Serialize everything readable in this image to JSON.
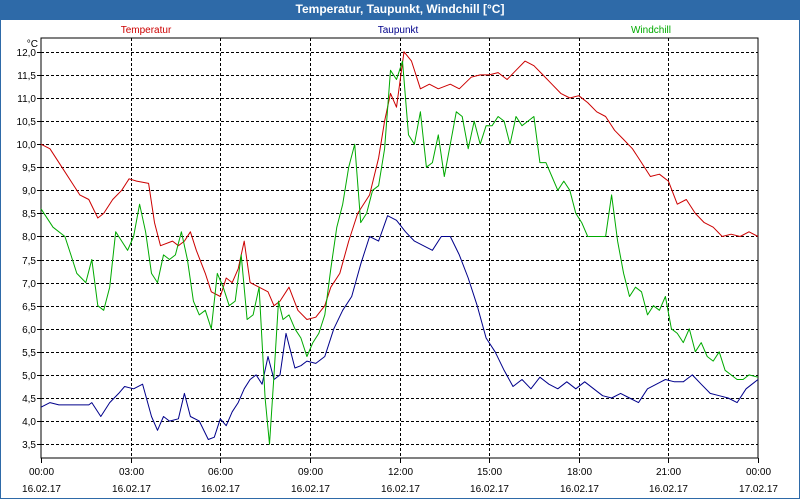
{
  "window": {
    "title": "Temperatur, Taupunkt, Windchill [°C]"
  },
  "chart_data": {
    "type": "line",
    "title": "Temperatur, Taupunkt, Windchill [°C]",
    "ylabel": "°C",
    "ylim": [
      3.2,
      12.3
    ],
    "yticks": [
      3.5,
      4.0,
      4.5,
      5.0,
      5.5,
      6.0,
      6.5,
      7.0,
      7.5,
      8.0,
      8.5,
      9.0,
      9.5,
      10.0,
      10.5,
      11.0,
      11.5,
      12.0
    ],
    "ytick_labels": [
      "3,5",
      "4,0",
      "4,5",
      "5,0",
      "5,5",
      "6,0",
      "6,5",
      "7,0",
      "7,5",
      "8,0",
      "8,5",
      "9,0",
      "9,5",
      "10,0",
      "10,5",
      "11,0",
      "11,5",
      "12,0"
    ],
    "xlim": [
      0,
      24
    ],
    "xticks": [
      0,
      3,
      6,
      9,
      12,
      15,
      18,
      21,
      24
    ],
    "xtick_time_labels": [
      "00:00",
      "03:00",
      "06:00",
      "09:00",
      "12:00",
      "15:00",
      "18:00",
      "21:00",
      "00:00"
    ],
    "xtick_date_labels": [
      "16.02.17",
      "16.02.17",
      "16.02.17",
      "16.02.17",
      "16.02.17",
      "16.02.17",
      "16.02.17",
      "16.02.17",
      "17.02.17"
    ],
    "grid": true,
    "legend_position": "top",
    "series": [
      {
        "name": "Temperatur",
        "color": "#cc0000",
        "x": [
          0,
          0.3,
          0.7,
          1.0,
          1.3,
          1.6,
          1.9,
          2.1,
          2.4,
          2.7,
          2.95,
          3.2,
          3.6,
          3.8,
          4.0,
          4.4,
          4.6,
          4.8,
          5.0,
          5.2,
          5.5,
          5.7,
          6.0,
          6.2,
          6.4,
          6.6,
          6.8,
          7.0,
          7.3,
          7.6,
          7.8,
          8.0,
          8.3,
          8.6,
          8.9,
          9.2,
          9.5,
          9.7,
          10.0,
          10.3,
          10.6,
          11.0,
          11.3,
          11.5,
          11.7,
          11.9,
          12.15,
          12.4,
          12.7,
          13.0,
          13.3,
          13.7,
          14.0,
          14.4,
          14.7,
          15.0,
          15.3,
          15.6,
          15.9,
          16.2,
          16.5,
          16.8,
          17.1,
          17.4,
          17.7,
          18.0,
          18.3,
          18.6,
          18.9,
          19.2,
          19.5,
          19.8,
          20.1,
          20.4,
          20.7,
          21.0,
          21.3,
          21.6,
          21.9,
          22.2,
          22.5,
          22.8,
          23.1,
          23.4,
          23.7,
          24.0
        ],
        "values": [
          10.0,
          9.9,
          9.5,
          9.2,
          8.9,
          8.8,
          8.4,
          8.5,
          8.8,
          9.0,
          9.25,
          9.2,
          9.15,
          8.3,
          7.8,
          7.9,
          7.8,
          7.9,
          8.1,
          7.7,
          7.2,
          6.8,
          6.7,
          7.1,
          7.0,
          7.3,
          7.9,
          7.0,
          6.9,
          6.8,
          6.5,
          6.6,
          6.9,
          6.4,
          6.2,
          6.25,
          6.5,
          6.9,
          7.2,
          7.9,
          8.5,
          8.9,
          9.7,
          10.5,
          11.1,
          10.8,
          12.0,
          11.8,
          11.2,
          11.3,
          11.2,
          11.3,
          11.2,
          11.45,
          11.5,
          11.5,
          11.55,
          11.4,
          11.6,
          11.8,
          11.7,
          11.5,
          11.3,
          11.1,
          11.0,
          11.05,
          10.9,
          10.7,
          10.6,
          10.3,
          10.1,
          9.9,
          9.6,
          9.3,
          9.35,
          9.2,
          8.7,
          8.8,
          8.5,
          8.3,
          8.2,
          8.0,
          8.05,
          8.0,
          8.1,
          8.0
        ]
      },
      {
        "name": "Taupunkt",
        "color": "#00008b",
        "x": [
          0,
          0.3,
          0.6,
          1.0,
          1.3,
          1.6,
          1.7,
          2.0,
          2.3,
          2.6,
          2.8,
          3.1,
          3.4,
          3.7,
          3.9,
          4.1,
          4.3,
          4.6,
          4.8,
          5.0,
          5.3,
          5.6,
          5.8,
          6.0,
          6.2,
          6.4,
          6.6,
          6.8,
          7.0,
          7.2,
          7.4,
          7.6,
          7.8,
          8.0,
          8.2,
          8.5,
          8.7,
          8.9,
          9.2,
          9.5,
          9.8,
          10.1,
          10.4,
          10.7,
          11.0,
          11.3,
          11.6,
          11.9,
          12.2,
          12.5,
          12.8,
          13.1,
          13.4,
          13.7,
          14.0,
          14.3,
          14.6,
          14.9,
          15.2,
          15.5,
          15.8,
          16.1,
          16.4,
          16.7,
          17.0,
          17.3,
          17.6,
          17.9,
          18.2,
          18.5,
          18.8,
          19.1,
          19.4,
          19.7,
          20.0,
          20.3,
          20.6,
          20.9,
          21.2,
          21.5,
          21.8,
          22.1,
          22.4,
          22.7,
          23.0,
          23.3,
          23.6,
          23.8,
          24.0
        ],
        "values": [
          4.3,
          4.4,
          4.35,
          4.35,
          4.35,
          4.35,
          4.4,
          4.1,
          4.4,
          4.6,
          4.75,
          4.7,
          4.8,
          4.1,
          3.8,
          4.1,
          4.0,
          4.05,
          4.6,
          4.1,
          4.0,
          3.6,
          3.65,
          4.05,
          3.9,
          4.2,
          4.4,
          4.7,
          4.9,
          5.0,
          4.8,
          5.4,
          4.9,
          5.0,
          5.9,
          5.15,
          5.2,
          5.3,
          5.25,
          5.4,
          6.0,
          6.4,
          6.7,
          7.4,
          8.0,
          7.9,
          8.45,
          8.35,
          8.1,
          7.9,
          7.8,
          7.7,
          8.0,
          8.0,
          7.6,
          7.1,
          6.5,
          5.8,
          5.5,
          5.1,
          4.75,
          4.9,
          4.7,
          4.95,
          4.8,
          4.7,
          4.85,
          4.7,
          4.85,
          4.7,
          4.55,
          4.5,
          4.6,
          4.5,
          4.4,
          4.7,
          4.8,
          4.9,
          4.85,
          4.85,
          5.0,
          4.8,
          4.6,
          4.55,
          4.5,
          4.4,
          4.7,
          4.8,
          4.9
        ]
      },
      {
        "name": "Windchill",
        "color": "#00aa00",
        "x": [
          0,
          0.4,
          0.8,
          1.0,
          1.2,
          1.5,
          1.7,
          1.9,
          2.1,
          2.3,
          2.5,
          2.7,
          2.9,
          3.1,
          3.3,
          3.5,
          3.7,
          3.9,
          4.1,
          4.3,
          4.5,
          4.7,
          4.9,
          5.1,
          5.3,
          5.5,
          5.7,
          5.9,
          6.1,
          6.3,
          6.5,
          6.7,
          6.9,
          7.1,
          7.3,
          7.5,
          7.65,
          7.8,
          7.95,
          8.1,
          8.3,
          8.5,
          8.7,
          8.9,
          9.1,
          9.3,
          9.5,
          9.7,
          9.9,
          10.1,
          10.3,
          10.5,
          10.7,
          10.9,
          11.1,
          11.3,
          11.5,
          11.7,
          11.9,
          12.1,
          12.3,
          12.5,
          12.7,
          12.9,
          13.1,
          13.3,
          13.5,
          13.7,
          13.9,
          14.1,
          14.3,
          14.5,
          14.7,
          14.9,
          15.1,
          15.3,
          15.5,
          15.7,
          15.9,
          16.1,
          16.3,
          16.5,
          16.7,
          16.9,
          17.1,
          17.3,
          17.5,
          17.7,
          17.9,
          18.1,
          18.3,
          18.5,
          18.7,
          18.9,
          19.1,
          19.3,
          19.5,
          19.7,
          19.9,
          20.1,
          20.3,
          20.5,
          20.7,
          20.9,
          21.1,
          21.3,
          21.5,
          21.7,
          21.9,
          22.1,
          22.3,
          22.5,
          22.7,
          22.9,
          23.1,
          23.3,
          23.5,
          23.7,
          24.0
        ],
        "values": [
          8.6,
          8.2,
          8.0,
          7.6,
          7.2,
          7.0,
          7.5,
          6.5,
          6.4,
          6.9,
          8.1,
          7.9,
          7.7,
          8.0,
          8.7,
          8.1,
          7.2,
          7.0,
          7.6,
          7.5,
          7.6,
          8.1,
          7.5,
          6.6,
          6.3,
          6.4,
          6.0,
          7.2,
          6.9,
          6.5,
          6.6,
          7.6,
          6.2,
          6.3,
          6.9,
          4.5,
          3.5,
          5.0,
          6.6,
          6.2,
          6.3,
          6.0,
          5.8,
          5.4,
          5.7,
          5.9,
          6.3,
          7.3,
          8.2,
          8.7,
          9.5,
          10.0,
          8.3,
          8.5,
          9.0,
          9.1,
          9.9,
          11.6,
          11.4,
          11.8,
          10.2,
          10.0,
          10.7,
          9.5,
          9.6,
          10.2,
          9.3,
          10.0,
          10.7,
          10.6,
          9.9,
          10.5,
          10.0,
          10.4,
          10.4,
          10.6,
          10.5,
          10.0,
          10.6,
          10.4,
          10.5,
          10.6,
          9.6,
          9.6,
          9.3,
          9.0,
          9.2,
          9.0,
          8.5,
          8.3,
          8.0,
          8.0,
          8.0,
          8.0,
          8.9,
          7.9,
          7.2,
          6.7,
          6.9,
          6.8,
          6.3,
          6.5,
          6.4,
          6.7,
          6.0,
          5.9,
          5.7,
          6.0,
          5.5,
          5.7,
          5.4,
          5.3,
          5.5,
          5.1,
          5.0,
          4.9,
          4.9,
          5.0,
          4.95
        ]
      }
    ]
  }
}
